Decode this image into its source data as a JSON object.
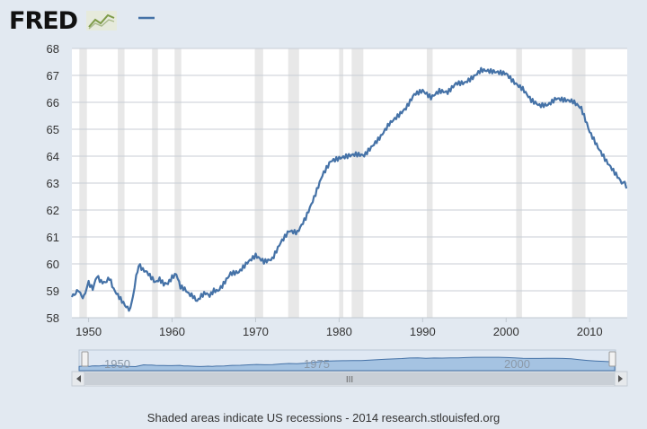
{
  "header": {
    "logo_text": "FRED",
    "legend_line_color": "#4572a7"
  },
  "footer": {
    "note": "Shaded areas indicate US recessions - 2014 research.stlouisfed.org"
  },
  "navigator": {
    "tick_labels": [
      "1950",
      "1975",
      "2000"
    ],
    "scroll_grip": "III"
  },
  "chart_data": {
    "type": "line",
    "title": "",
    "xlabel": "",
    "ylabel": "",
    "xlim": [
      1948,
      2014.5
    ],
    "ylim": [
      58,
      68
    ],
    "x_ticks": [
      1950,
      1960,
      1970,
      1980,
      1990,
      2000,
      2010
    ],
    "y_ticks": [
      58,
      59,
      60,
      61,
      62,
      63,
      64,
      65,
      66,
      67,
      68
    ],
    "grid": true,
    "line_color": "#4572a7",
    "recession_shading_color": "#e8e8e8",
    "recessions": [
      [
        1948.9,
        1949.8
      ],
      [
        1953.5,
        1954.3
      ],
      [
        1957.6,
        1958.3
      ],
      [
        1960.3,
        1961.1
      ],
      [
        1969.9,
        1970.9
      ],
      [
        1973.9,
        1975.2
      ],
      [
        1980.0,
        1980.5
      ],
      [
        1981.5,
        1982.9
      ],
      [
        1990.5,
        1991.2
      ],
      [
        2001.2,
        2001.9
      ],
      [
        2007.9,
        2009.5
      ]
    ],
    "series": [
      {
        "x": [
          1948.0,
          1948.3,
          1948.6,
          1949.0,
          1949.3,
          1949.6,
          1950.0,
          1950.5,
          1951.0,
          1951.5,
          1952.0,
          1952.5,
          1953.0,
          1953.5,
          1954.0,
          1954.5,
          1955.0,
          1955.3,
          1955.7,
          1956.0,
          1956.5,
          1957.0,
          1957.5,
          1958.0,
          1958.5,
          1959.0,
          1959.5,
          1960.0,
          1960.5,
          1961.0,
          1961.5,
          1962.0,
          1962.5,
          1963.0,
          1963.5,
          1964.0,
          1964.5,
          1965.0,
          1965.5,
          1966.0,
          1967.0,
          1968.0,
          1969.0,
          1970.0,
          1971.0,
          1972.0,
          1973.0,
          1974.0,
          1975.0,
          1976.0,
          1977.0,
          1978.0,
          1979.0,
          1980.0,
          1981.0,
          1982.0,
          1983.0,
          1984.0,
          1985.0,
          1986.0,
          1987.0,
          1988.0,
          1989.0,
          1990.0,
          1991.0,
          1992.0,
          1993.0,
          1994.0,
          1995.0,
          1996.0,
          1997.0,
          1998.0,
          1999.0,
          2000.0,
          2001.0,
          2002.0,
          2003.0,
          2004.0,
          2005.0,
          2006.0,
          2007.0,
          2008.0,
          2009.0,
          2010.0,
          2011.0,
          2012.0,
          2013.0,
          2014.0,
          2014.4
        ],
        "values": [
          58.6,
          58.8,
          59.2,
          58.9,
          58.7,
          59.0,
          59.2,
          59.0,
          59.5,
          59.3,
          59.3,
          59.5,
          59.1,
          58.9,
          58.7,
          58.5,
          58.4,
          58.9,
          59.6,
          60.1,
          59.9,
          59.8,
          59.6,
          59.4,
          59.5,
          59.3,
          59.3,
          59.5,
          59.6,
          59.1,
          59.0,
          58.8,
          58.7,
          58.5,
          58.7,
          58.8,
          58.7,
          58.9,
          58.9,
          59.1,
          59.6,
          59.7,
          60.1,
          60.4,
          60.2,
          60.3,
          60.9,
          61.3,
          61.2,
          61.7,
          62.4,
          63.2,
          63.7,
          63.8,
          63.9,
          64.0,
          64.0,
          64.4,
          64.8,
          65.3,
          65.6,
          65.9,
          66.4,
          66.5,
          66.2,
          66.4,
          66.3,
          66.6,
          66.6,
          66.8,
          67.1,
          67.1,
          67.1,
          67.1,
          66.8,
          66.6,
          66.2,
          66.0,
          66.0,
          66.2,
          66.1,
          66.0,
          65.7,
          64.8,
          64.2,
          63.7,
          63.3,
          62.9,
          62.8
        ]
      }
    ]
  }
}
